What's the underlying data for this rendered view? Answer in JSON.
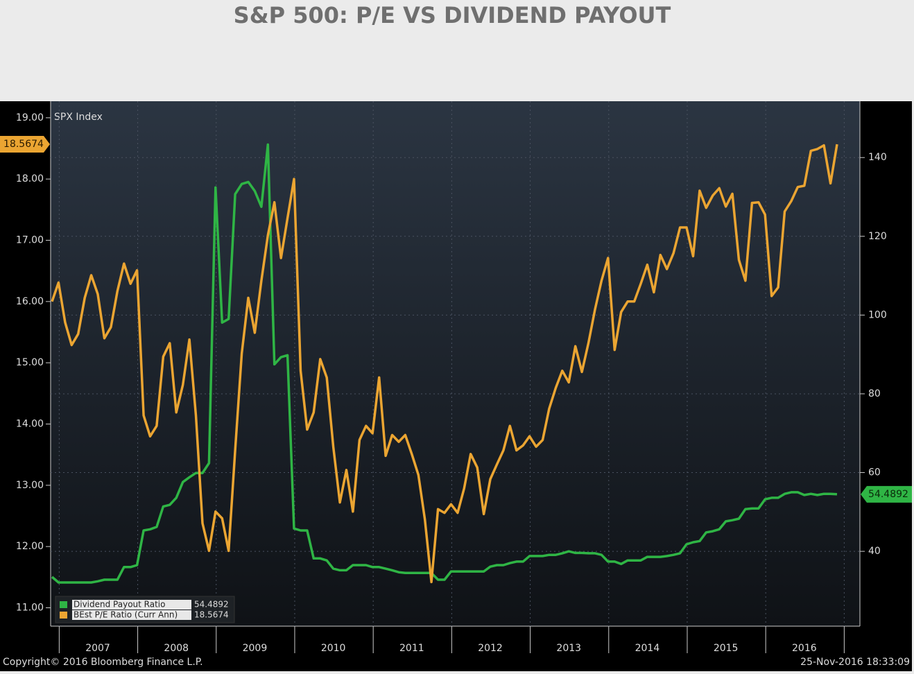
{
  "chart_data": {
    "type": "line",
    "title": "S&P 500: P/E VS DIVIDEND PAYOUT",
    "annotation": "SPX Index",
    "source": "Copyright© 2016 Bloomberg Finance L.P.",
    "timestamp": "25-Nov-2016 18:33:09",
    "categories": [
      null,
      null,
      null,
      null,
      null,
      null,
      null,
      "2007",
      null,
      null,
      null,
      null,
      null,
      null,
      null,
      null,
      null,
      null,
      null,
      "2008",
      null,
      null,
      null,
      null,
      null,
      null,
      null,
      null,
      null,
      null,
      null,
      "2009",
      null,
      null,
      null,
      null,
      null,
      null,
      null,
      null,
      null,
      null,
      null,
      "2010",
      null,
      null,
      null,
      null,
      null,
      null,
      null,
      null,
      null,
      null,
      null,
      "2011",
      null,
      null,
      null,
      null,
      null,
      null,
      null,
      null,
      null,
      null,
      null,
      "2012",
      null,
      null,
      null,
      null,
      null,
      null,
      null,
      null,
      null,
      null,
      null,
      "2013",
      null,
      null,
      null,
      null,
      null,
      null,
      null,
      null,
      null,
      null,
      null,
      "2014",
      null,
      null,
      null,
      null,
      null,
      null,
      null,
      null,
      null,
      null,
      null,
      "2015",
      null,
      null,
      null,
      null,
      null,
      null,
      null,
      null,
      null,
      null,
      null,
      "2016",
      null,
      null,
      null,
      null,
      null
    ],
    "series": [
      {
        "name": "Dividend Payout Ratio",
        "color": "#2fb545",
        "axis": "y2",
        "values": [
          33.5,
          32.1,
          32.1,
          32.1,
          32.1,
          32.1,
          32.1,
          32.4,
          32.8,
          32.8,
          32.8,
          36.0,
          36.0,
          36.5,
          45.3,
          45.6,
          46.2,
          51.4,
          51.8,
          53.6,
          57.6,
          58.8,
          59.9,
          59.9,
          62.4,
          132.4,
          98.1,
          99.0,
          130.7,
          133.3,
          133.8,
          131.5,
          127.5,
          143.3,
          87.5,
          89.3,
          89.8,
          45.8,
          45.3,
          45.3,
          38.2,
          38.2,
          37.7,
          35.6,
          35.2,
          35.2,
          36.5,
          36.5,
          36.5,
          36.0,
          36.0,
          35.6,
          35.2,
          34.7,
          34.5,
          34.5,
          34.5,
          34.5,
          34.5,
          32.8,
          32.8,
          34.9,
          34.9,
          34.9,
          34.9,
          34.9,
          34.9,
          36.1,
          36.5,
          36.5,
          37.0,
          37.4,
          37.4,
          38.8,
          38.8,
          38.8,
          39.1,
          39.1,
          39.5,
          40.0,
          39.6,
          39.6,
          39.5,
          39.5,
          39.1,
          37.4,
          37.4,
          36.8,
          37.7,
          37.7,
          37.7,
          38.6,
          38.6,
          38.6,
          38.8,
          39.1,
          39.5,
          41.8,
          42.3,
          42.6,
          44.8,
          45.1,
          45.6,
          47.6,
          47.9,
          48.3,
          50.7,
          50.9,
          50.9,
          53.2,
          53.6,
          53.6,
          54.6,
          55.0,
          55.0,
          54.3,
          54.6,
          54.3,
          54.6,
          54.6,
          54.4892
        ]
      },
      {
        "name": "BEst P/E Ratio (Curr Ann)",
        "color": "#eba532",
        "values": [
          16.0,
          16.31,
          15.66,
          15.29,
          15.47,
          16.06,
          16.43,
          16.12,
          15.4,
          15.58,
          16.17,
          16.62,
          16.29,
          16.51,
          14.14,
          13.8,
          13.97,
          15.1,
          15.32,
          14.19,
          14.64,
          15.38,
          14.14,
          12.38,
          11.93,
          12.57,
          12.46,
          11.93,
          13.57,
          15.15,
          16.06,
          15.49,
          16.34,
          17.08,
          17.62,
          16.71,
          17.36,
          18.0,
          14.87,
          13.91,
          14.19,
          15.06,
          14.76,
          13.63,
          12.72,
          13.25,
          12.57,
          13.74,
          13.97,
          13.85,
          14.76,
          13.48,
          13.82,
          13.71,
          13.82,
          13.51,
          13.17,
          12.44,
          11.42,
          12.61,
          12.55,
          12.69,
          12.55,
          12.95,
          13.51,
          13.29,
          12.53,
          13.1,
          13.34,
          13.57,
          13.97,
          13.57,
          13.65,
          13.8,
          13.63,
          13.74,
          14.25,
          14.59,
          14.87,
          14.68,
          15.27,
          14.85,
          15.32,
          15.87,
          16.34,
          16.71,
          15.21,
          15.83,
          16.0,
          16.0,
          16.29,
          16.6,
          16.15,
          16.76,
          16.53,
          16.79,
          17.21,
          17.21,
          16.74,
          17.81,
          17.53,
          17.73,
          17.85,
          17.55,
          17.76,
          16.68,
          16.34,
          17.61,
          17.62,
          17.42,
          16.09,
          16.23,
          17.47,
          17.64,
          17.87,
          17.89,
          18.46,
          18.49,
          18.55,
          17.93,
          18.5674
        ]
      }
    ],
    "ylim": [
      10.7,
      19.27
    ],
    "yticks": [
      {
        "value": 11,
        "label": "11.00"
      },
      {
        "value": 12,
        "label": "12.00"
      },
      {
        "value": 13,
        "label": "13.00"
      },
      {
        "value": 14,
        "label": "14.00"
      },
      {
        "value": 15,
        "label": "15.00"
      },
      {
        "value": 16,
        "label": "16.00"
      },
      {
        "value": 17,
        "label": "17.00"
      },
      {
        "value": 18,
        "label": "18.00"
      },
      {
        "value": 19,
        "label": "19.00"
      }
    ],
    "y2lim": [
      21,
      154.3
    ],
    "y2ticks": [
      40,
      60,
      80,
      100,
      120,
      140
    ],
    "grid": true,
    "legend": "bottom-left"
  }
}
